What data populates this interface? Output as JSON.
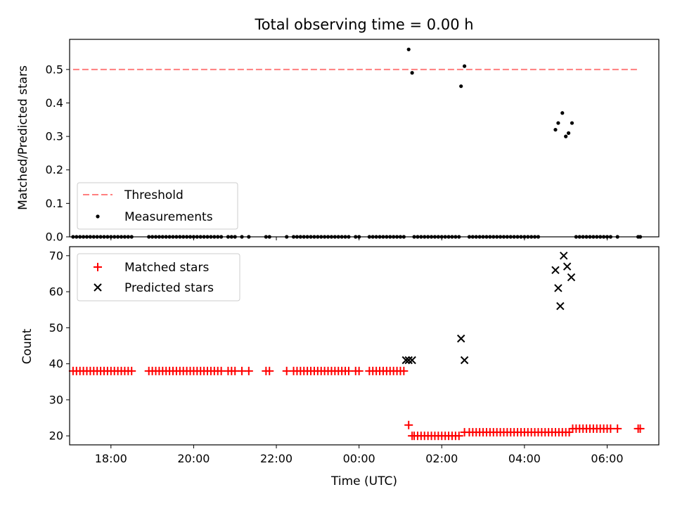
{
  "chart_data": [
    {
      "type": "scatter",
      "title": "Total observing time = 0.00 h",
      "xlabel": "",
      "ylabel": "Matched/Predicted stars",
      "xlim": [
        "17:00",
        "07:15"
      ],
      "ylim": [
        0,
        0.59
      ],
      "yticks": [
        "0.0",
        "0.1",
        "0.2",
        "0.3",
        "0.4",
        "0.5"
      ],
      "threshold": {
        "name": "Threshold",
        "value": 0.5,
        "x_start": "17:05",
        "x_end": "06:45",
        "color": "#ff7f7f"
      },
      "series": [
        {
          "name": "Measurements",
          "color": "#000000",
          "points": [
            [
              "01:12",
              0.56
            ],
            [
              "01:17",
              0.49
            ],
            [
              "02:33",
              0.51
            ],
            [
              "02:28",
              0.45
            ],
            [
              "04:45",
              0.32
            ],
            [
              "04:49",
              0.34
            ],
            [
              "04:55",
              0.37
            ],
            [
              "05:00",
              0.3
            ],
            [
              "05:04",
              0.31
            ],
            [
              "05:09",
              0.34
            ]
          ],
          "zero_points": [
            "17:05",
            "17:10",
            "17:15",
            "17:20",
            "17:25",
            "17:30",
            "17:35",
            "17:40",
            "17:45",
            "17:50",
            "17:55",
            "18:00",
            "18:05",
            "18:10",
            "18:15",
            "18:20",
            "18:25",
            "18:30",
            "18:55",
            "19:00",
            "19:05",
            "19:10",
            "19:15",
            "19:20",
            "19:25",
            "19:30",
            "19:35",
            "19:40",
            "19:45",
            "19:50",
            "19:55",
            "20:00",
            "20:05",
            "20:10",
            "20:15",
            "20:20",
            "20:25",
            "20:30",
            "20:35",
            "20:40",
            "20:50",
            "20:55",
            "21:00",
            "21:10",
            "21:20",
            "21:45",
            "21:50",
            "22:15",
            "22:25",
            "22:30",
            "22:35",
            "22:40",
            "22:45",
            "22:50",
            "22:55",
            "23:00",
            "23:05",
            "23:10",
            "23:15",
            "23:20",
            "23:25",
            "23:30",
            "23:35",
            "23:40",
            "23:45",
            "23:55",
            "00:00",
            "00:15",
            "00:20",
            "00:25",
            "00:30",
            "00:35",
            "00:40",
            "00:45",
            "00:50",
            "00:55",
            "01:00",
            "01:05",
            "01:20",
            "01:25",
            "01:30",
            "01:35",
            "01:40",
            "01:45",
            "01:50",
            "01:55",
            "02:00",
            "02:05",
            "02:10",
            "02:15",
            "02:20",
            "02:25",
            "02:40",
            "02:45",
            "02:50",
            "02:55",
            "03:00",
            "03:05",
            "03:10",
            "03:15",
            "03:20",
            "03:25",
            "03:30",
            "03:35",
            "03:40",
            "03:45",
            "03:50",
            "03:55",
            "04:00",
            "04:05",
            "04:10",
            "04:15",
            "04:20",
            "05:15",
            "05:20",
            "05:25",
            "05:30",
            "05:35",
            "05:40",
            "05:45",
            "05:50",
            "05:55",
            "06:00",
            "06:05",
            "06:15",
            "06:45",
            "06:48"
          ]
        }
      ],
      "legend": "lower-left"
    },
    {
      "type": "scatter",
      "title": "",
      "xlabel": "Time (UTC)",
      "ylabel": "Count",
      "xlim": [
        "17:00",
        "07:15"
      ],
      "ylim": [
        17.5,
        72.5
      ],
      "yticks": [
        "20",
        "30",
        "40",
        "50",
        "60",
        "70"
      ],
      "xticks": [
        "18:00",
        "20:00",
        "22:00",
        "00:00",
        "02:00",
        "04:00",
        "06:00"
      ],
      "series": [
        {
          "name": "Matched stars",
          "marker": "plus",
          "color": "#ff0000",
          "points": [
            [
              "17:05",
              38
            ],
            [
              "17:10",
              38
            ],
            [
              "17:15",
              38
            ],
            [
              "17:20",
              38
            ],
            [
              "17:25",
              38
            ],
            [
              "17:30",
              38
            ],
            [
              "17:35",
              38
            ],
            [
              "17:40",
              38
            ],
            [
              "17:45",
              38
            ],
            [
              "17:50",
              38
            ],
            [
              "17:55",
              38
            ],
            [
              "18:00",
              38
            ],
            [
              "18:05",
              38
            ],
            [
              "18:10",
              38
            ],
            [
              "18:15",
              38
            ],
            [
              "18:20",
              38
            ],
            [
              "18:25",
              38
            ],
            [
              "18:30",
              38
            ],
            [
              "18:55",
              38
            ],
            [
              "19:00",
              38
            ],
            [
              "19:05",
              38
            ],
            [
              "19:10",
              38
            ],
            [
              "19:15",
              38
            ],
            [
              "19:20",
              38
            ],
            [
              "19:25",
              38
            ],
            [
              "19:30",
              38
            ],
            [
              "19:35",
              38
            ],
            [
              "19:40",
              38
            ],
            [
              "19:45",
              38
            ],
            [
              "19:50",
              38
            ],
            [
              "19:55",
              38
            ],
            [
              "20:00",
              38
            ],
            [
              "20:05",
              38
            ],
            [
              "20:10",
              38
            ],
            [
              "20:15",
              38
            ],
            [
              "20:20",
              38
            ],
            [
              "20:25",
              38
            ],
            [
              "20:30",
              38
            ],
            [
              "20:35",
              38
            ],
            [
              "20:40",
              38
            ],
            [
              "20:50",
              38
            ],
            [
              "20:55",
              38
            ],
            [
              "21:00",
              38
            ],
            [
              "21:10",
              38
            ],
            [
              "21:20",
              38
            ],
            [
              "21:45",
              38
            ],
            [
              "21:50",
              38
            ],
            [
              "22:15",
              38
            ],
            [
              "22:25",
              38
            ],
            [
              "22:30",
              38
            ],
            [
              "22:35",
              38
            ],
            [
              "22:40",
              38
            ],
            [
              "22:45",
              38
            ],
            [
              "22:50",
              38
            ],
            [
              "22:55",
              38
            ],
            [
              "23:00",
              38
            ],
            [
              "23:05",
              38
            ],
            [
              "23:10",
              38
            ],
            [
              "23:15",
              38
            ],
            [
              "23:20",
              38
            ],
            [
              "23:25",
              38
            ],
            [
              "23:30",
              38
            ],
            [
              "23:35",
              38
            ],
            [
              "23:40",
              38
            ],
            [
              "23:45",
              38
            ],
            [
              "23:55",
              38
            ],
            [
              "00:00",
              38
            ],
            [
              "00:15",
              38
            ],
            [
              "00:20",
              38
            ],
            [
              "00:25",
              38
            ],
            [
              "00:30",
              38
            ],
            [
              "00:35",
              38
            ],
            [
              "00:40",
              38
            ],
            [
              "00:45",
              38
            ],
            [
              "00:50",
              38
            ],
            [
              "00:55",
              38
            ],
            [
              "01:00",
              38
            ],
            [
              "01:05",
              38
            ],
            [
              "01:12",
              23
            ],
            [
              "01:17",
              20
            ],
            [
              "01:20",
              20
            ],
            [
              "01:25",
              20
            ],
            [
              "01:30",
              20
            ],
            [
              "01:35",
              20
            ],
            [
              "01:40",
              20
            ],
            [
              "01:45",
              20
            ],
            [
              "01:50",
              20
            ],
            [
              "01:55",
              20
            ],
            [
              "02:00",
              20
            ],
            [
              "02:05",
              20
            ],
            [
              "02:10",
              20
            ],
            [
              "02:15",
              20
            ],
            [
              "02:20",
              20
            ],
            [
              "02:25",
              20
            ],
            [
              "02:33",
              21
            ],
            [
              "02:40",
              21
            ],
            [
              "02:45",
              21
            ],
            [
              "02:50",
              21
            ],
            [
              "02:55",
              21
            ],
            [
              "03:00",
              21
            ],
            [
              "03:05",
              21
            ],
            [
              "03:10",
              21
            ],
            [
              "03:15",
              21
            ],
            [
              "03:20",
              21
            ],
            [
              "03:25",
              21
            ],
            [
              "03:30",
              21
            ],
            [
              "03:35",
              21
            ],
            [
              "03:40",
              21
            ],
            [
              "03:45",
              21
            ],
            [
              "03:50",
              21
            ],
            [
              "03:55",
              21
            ],
            [
              "04:00",
              21
            ],
            [
              "04:05",
              21
            ],
            [
              "04:10",
              21
            ],
            [
              "04:15",
              21
            ],
            [
              "04:20",
              21
            ],
            [
              "04:25",
              21
            ],
            [
              "04:30",
              21
            ],
            [
              "04:35",
              21
            ],
            [
              "04:40",
              21
            ],
            [
              "04:45",
              21
            ],
            [
              "04:50",
              21
            ],
            [
              "04:55",
              21
            ],
            [
              "05:00",
              21
            ],
            [
              "05:05",
              21
            ],
            [
              "05:10",
              22
            ],
            [
              "05:15",
              22
            ],
            [
              "05:20",
              22
            ],
            [
              "05:25",
              22
            ],
            [
              "05:30",
              22
            ],
            [
              "05:35",
              22
            ],
            [
              "05:40",
              22
            ],
            [
              "05:45",
              22
            ],
            [
              "05:50",
              22
            ],
            [
              "05:55",
              22
            ],
            [
              "06:00",
              22
            ],
            [
              "06:05",
              22
            ],
            [
              "06:15",
              22
            ],
            [
              "06:45",
              22
            ],
            [
              "06:48",
              22
            ]
          ]
        },
        {
          "name": "Predicted stars",
          "marker": "x",
          "color": "#000000",
          "points": [
            [
              "01:08",
              41
            ],
            [
              "01:12",
              41
            ],
            [
              "01:17",
              41
            ],
            [
              "02:28",
              47
            ],
            [
              "02:33",
              41
            ],
            [
              "04:45",
              66
            ],
            [
              "04:49",
              61
            ],
            [
              "04:52",
              56
            ],
            [
              "04:57",
              70
            ],
            [
              "05:02",
              67
            ],
            [
              "05:08",
              64
            ]
          ]
        }
      ],
      "legend": "upper-left"
    }
  ]
}
